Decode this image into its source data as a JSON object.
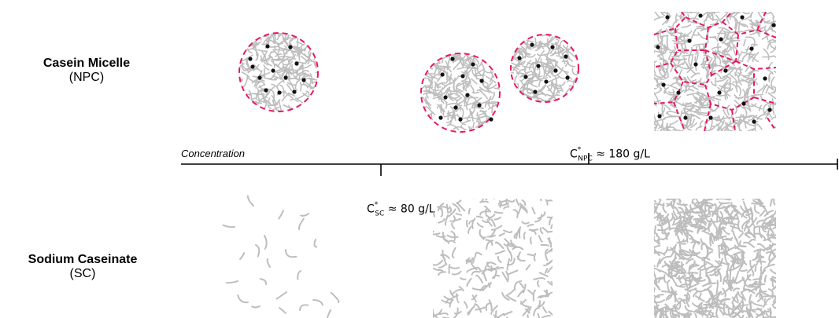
{
  "rows": {
    "micelle": {
      "name": "Casein Micelle",
      "abbr": "(NPC)"
    },
    "caseinate": {
      "name": "Sodium Caseinate",
      "abbr": "(SC)"
    }
  },
  "axis": {
    "title": "Concentration",
    "c_sc": {
      "symbol": "C",
      "star": "*",
      "sub": "SC",
      "rest": "≈ 80 g/L"
    },
    "c_npc": {
      "symbol": "C",
      "star": "*",
      "sub": "NPC",
      "rest": "≈ 180 g/L"
    }
  },
  "colors": {
    "strand": "#bdbdbd",
    "boundary": "#e8195a",
    "particle": "#111111",
    "axis": "#000000"
  }
}
